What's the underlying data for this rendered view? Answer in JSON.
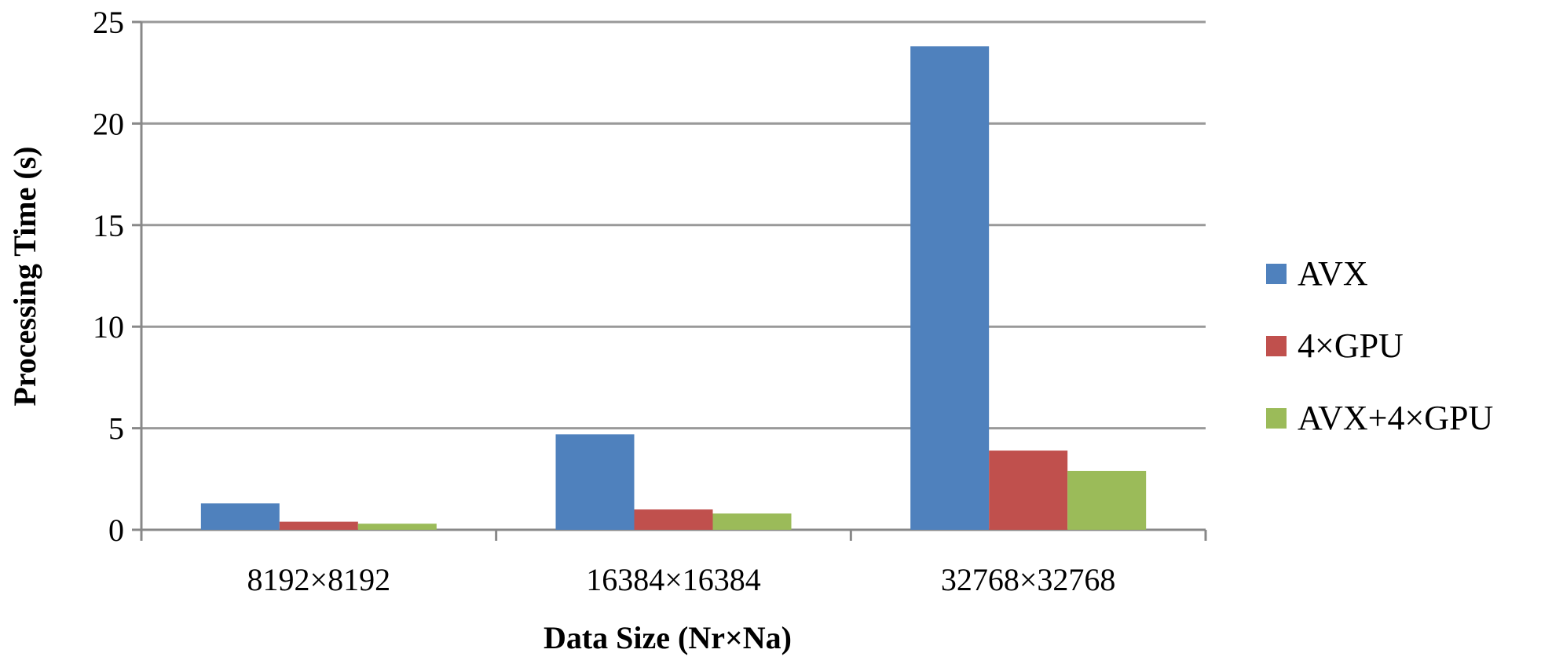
{
  "chart_data": {
    "type": "bar",
    "categories": [
      "8192×8192",
      "16384×16384",
      "32768×32768"
    ],
    "series": [
      {
        "name": "AVX",
        "values": [
          1.3,
          4.7,
          23.8
        ],
        "color": "#4f81bd"
      },
      {
        "name": "4×GPU",
        "values": [
          0.4,
          1.0,
          3.9
        ],
        "color": "#c0504d"
      },
      {
        "name": "AVX+4×GPU",
        "values": [
          0.3,
          0.8,
          2.9
        ],
        "color": "#9bbb59"
      }
    ],
    "xlabel": "Data Size (Nr×Na)",
    "ylabel": "Processing Time (s)",
    "ylim": [
      0,
      25
    ],
    "yticks": [
      0,
      5,
      10,
      15,
      20,
      25
    ],
    "grid": true,
    "legend": "right"
  }
}
